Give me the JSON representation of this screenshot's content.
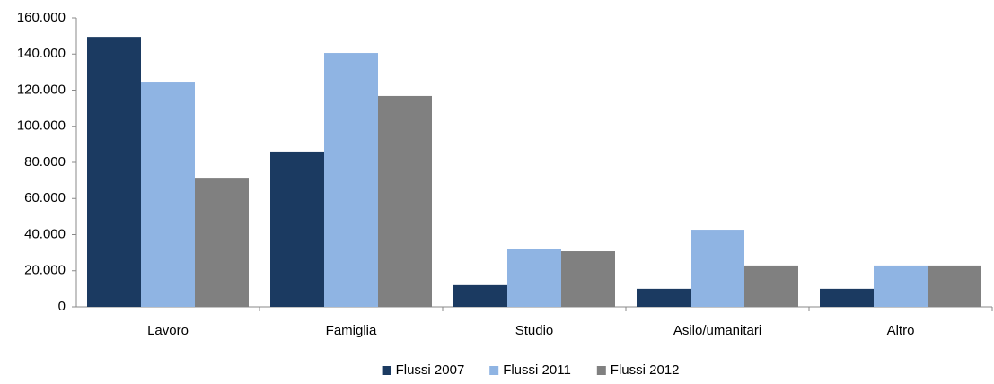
{
  "chart_data": {
    "type": "bar",
    "categories": [
      "Lavoro",
      "Famiglia",
      "Studio",
      "Asilo/umanitari",
      "Altro"
    ],
    "series": [
      {
        "name": "Flussi 2007",
        "color": "#1b3a61",
        "values": [
          149500,
          86000,
          12000,
          10000,
          10000
        ]
      },
      {
        "name": "Flussi 2011",
        "color": "#8fb4e3",
        "values": [
          124700,
          140600,
          31800,
          42700,
          22900
        ]
      },
      {
        "name": "Flussi 2012",
        "color": "#808080",
        "values": [
          71500,
          116800,
          30800,
          22900,
          22900
        ]
      }
    ],
    "ylim": [
      0,
      160000
    ],
    "yticks": [
      0,
      {
        "value": 20000,
        "label": "20.000"
      },
      {
        "value": 40000,
        "label": "40.000"
      },
      {
        "value": 60000,
        "label": "60.000"
      },
      {
        "value": 80000,
        "label": "80.000"
      },
      {
        "value": 100000,
        "label": "100.000"
      },
      {
        "value": 120000,
        "label": "120.000"
      },
      {
        "value": 140000,
        "label": "140.000"
      },
      {
        "value": 160000,
        "label": "160.000"
      }
    ],
    "grid": false,
    "legend": "bottom"
  }
}
